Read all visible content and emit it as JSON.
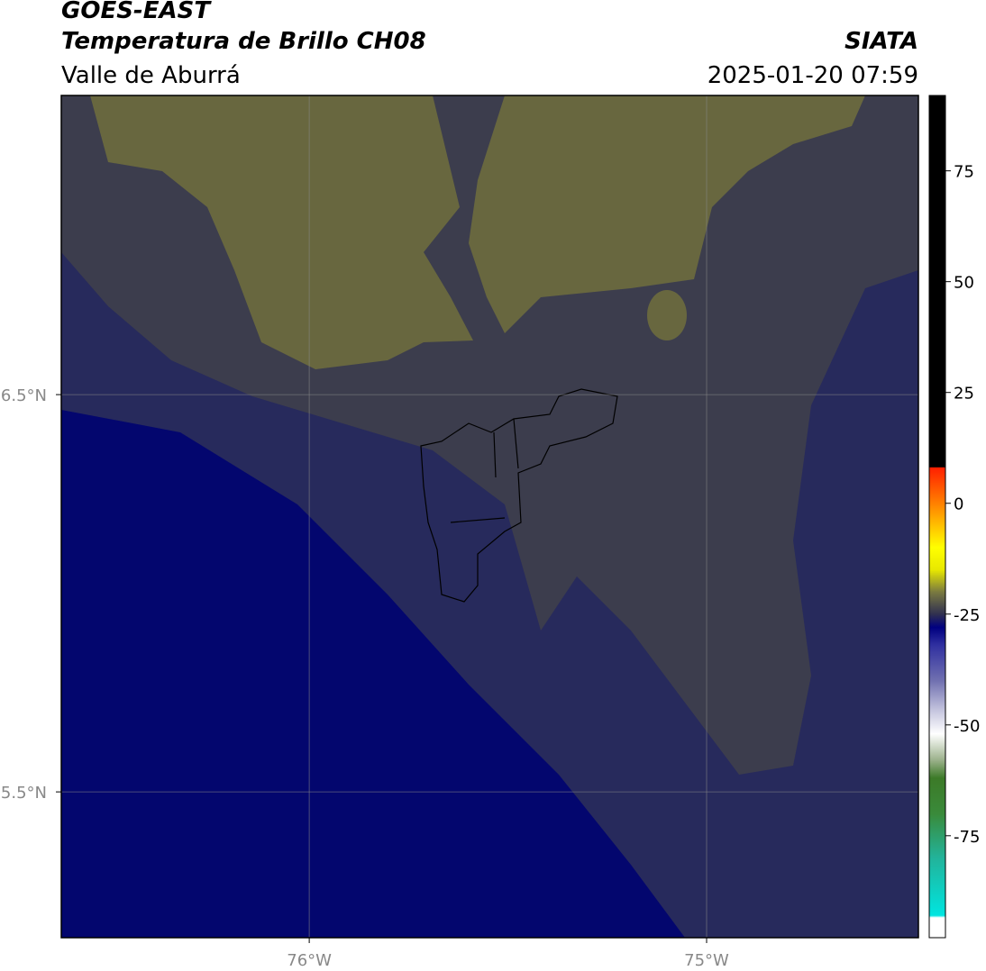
{
  "header": {
    "title": "GOES-EAST",
    "subtitle": "Temperatura de Brillo CH08",
    "region": "Valle de Aburrá",
    "source": "SIATA",
    "datetime": "2025-01-20 07:59"
  },
  "map": {
    "lon_range": [
      -76.624,
      -74.467
    ],
    "lat_range": [
      5.133,
      7.253
    ],
    "lon_ticks": [
      {
        "value": -76,
        "label": "76°W"
      },
      {
        "value": -75,
        "label": "75°W"
      }
    ],
    "lat_ticks": [
      {
        "value": 6.5,
        "label": "6.5°N"
      },
      {
        "value": 5.5,
        "label": "5.5°N"
      }
    ]
  },
  "colorbar": {
    "range": [
      -98,
      92
    ],
    "ticks": [
      75,
      50,
      25,
      0,
      -25,
      -50,
      -75
    ],
    "stops": [
      {
        "value": -98,
        "color": "#ffffff"
      },
      {
        "value": -93.5,
        "color": "#ffffff"
      },
      {
        "value": -93,
        "color": "#00e5e0"
      },
      {
        "value": -80,
        "color": "#22b39a"
      },
      {
        "value": -70,
        "color": "#3a8a3a"
      },
      {
        "value": -62,
        "color": "#3c7a28"
      },
      {
        "value": -58,
        "color": "#9ab08a"
      },
      {
        "value": -52,
        "color": "#ffffff"
      },
      {
        "value": -47,
        "color": "#c8c8e0"
      },
      {
        "value": -40,
        "color": "#7070b0"
      },
      {
        "value": -32,
        "color": "#3030a0"
      },
      {
        "value": -28,
        "color": "#000080"
      },
      {
        "value": -25,
        "color": "#303050"
      },
      {
        "value": -20,
        "color": "#7a7a40"
      },
      {
        "value": -15,
        "color": "#e8e800"
      },
      {
        "value": -10,
        "color": "#ffff00"
      },
      {
        "value": -5,
        "color": "#ffc000"
      },
      {
        "value": 0,
        "color": "#ff8000"
      },
      {
        "value": 8,
        "color": "#ff2000"
      },
      {
        "value": 8.2,
        "color": "#000000"
      },
      {
        "value": 92,
        "color": "#000000"
      }
    ]
  }
}
